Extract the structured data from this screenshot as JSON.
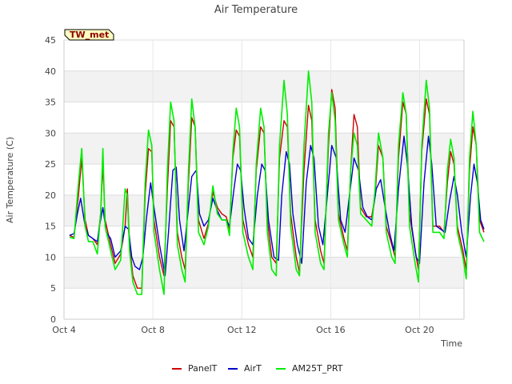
{
  "chart_data": {
    "type": "line",
    "title": "Air Temperature",
    "xlabel": "Time",
    "ylabel": "Air Temperature (C)",
    "station_label": "TW_met",
    "x_unit": "days since Oct 4",
    "xlim": [
      0,
      18
    ],
    "ylim": [
      0,
      45
    ],
    "y_ticks": [
      0,
      5,
      10,
      15,
      20,
      25,
      30,
      35,
      40,
      45
    ],
    "x_ticks": [
      {
        "value": 0,
        "label": "Oct 4"
      },
      {
        "value": 4,
        "label": "Oct 8"
      },
      {
        "value": 8,
        "label": "Oct 12"
      },
      {
        "value": 12,
        "label": "Oct 16"
      },
      {
        "value": 16,
        "label": "Oct 20"
      }
    ],
    "grid": true,
    "legend_position": "bottom",
    "series": [
      {
        "name": "PanelT",
        "color": "#cc0000",
        "points": [
          [
            0.25,
            13.5
          ],
          [
            0.45,
            13.2
          ],
          [
            0.65,
            20
          ],
          [
            0.8,
            26
          ],
          [
            0.95,
            16
          ],
          [
            1.1,
            13.5
          ],
          [
            1.3,
            13
          ],
          [
            1.5,
            12
          ],
          [
            1.65,
            17
          ],
          [
            1.75,
            25
          ],
          [
            1.85,
            16
          ],
          [
            2.1,
            12
          ],
          [
            2.3,
            9
          ],
          [
            2.55,
            10.5
          ],
          [
            2.75,
            15
          ],
          [
            2.85,
            21
          ],
          [
            2.95,
            12
          ],
          [
            3.1,
            7
          ],
          [
            3.3,
            5
          ],
          [
            3.5,
            5
          ],
          [
            3.65,
            20
          ],
          [
            3.8,
            27.5
          ],
          [
            3.95,
            27
          ],
          [
            4.05,
            16
          ],
          [
            4.3,
            10
          ],
          [
            4.5,
            7
          ],
          [
            4.65,
            21
          ],
          [
            4.8,
            32
          ],
          [
            4.95,
            31
          ],
          [
            5.1,
            14
          ],
          [
            5.3,
            10
          ],
          [
            5.45,
            8
          ],
          [
            5.6,
            22
          ],
          [
            5.75,
            32.5
          ],
          [
            5.9,
            31
          ],
          [
            6.05,
            16
          ],
          [
            6.3,
            13
          ],
          [
            6.5,
            15.5
          ],
          [
            6.7,
            20.5
          ],
          [
            6.9,
            18
          ],
          [
            7.1,
            17
          ],
          [
            7.3,
            16.5
          ],
          [
            7.45,
            14.5
          ],
          [
            7.6,
            26
          ],
          [
            7.75,
            30.5
          ],
          [
            7.9,
            29.5
          ],
          [
            8.05,
            16
          ],
          [
            8.3,
            12
          ],
          [
            8.5,
            10
          ],
          [
            8.65,
            24
          ],
          [
            8.85,
            31
          ],
          [
            9.0,
            30
          ],
          [
            9.15,
            16
          ],
          [
            9.35,
            10
          ],
          [
            9.55,
            9
          ],
          [
            9.7,
            26
          ],
          [
            9.9,
            32
          ],
          [
            10.05,
            31
          ],
          [
            10.2,
            17
          ],
          [
            10.45,
            10
          ],
          [
            10.6,
            7.5
          ],
          [
            10.8,
            24
          ],
          [
            11.0,
            34.5
          ],
          [
            11.15,
            32
          ],
          [
            11.3,
            16
          ],
          [
            11.55,
            11
          ],
          [
            11.7,
            9
          ],
          [
            11.9,
            28
          ],
          [
            12.05,
            37
          ],
          [
            12.2,
            34
          ],
          [
            12.35,
            17
          ],
          [
            12.6,
            13
          ],
          [
            12.75,
            11
          ],
          [
            12.9,
            24
          ],
          [
            13.05,
            33
          ],
          [
            13.2,
            31
          ],
          [
            13.35,
            18
          ],
          [
            13.6,
            16.5
          ],
          [
            13.85,
            16.5
          ],
          [
            14.0,
            20
          ],
          [
            14.15,
            28
          ],
          [
            14.35,
            26
          ],
          [
            14.5,
            15
          ],
          [
            14.75,
            12
          ],
          [
            14.9,
            10
          ],
          [
            15.05,
            26
          ],
          [
            15.25,
            35
          ],
          [
            15.4,
            33
          ],
          [
            15.55,
            17
          ],
          [
            15.8,
            11
          ],
          [
            15.95,
            8
          ],
          [
            16.1,
            27
          ],
          [
            16.3,
            35.5
          ],
          [
            16.45,
            33
          ],
          [
            16.6,
            15
          ],
          [
            16.9,
            15
          ],
          [
            17.1,
            14
          ],
          [
            17.25,
            22
          ],
          [
            17.4,
            27
          ],
          [
            17.55,
            25
          ],
          [
            17.7,
            15
          ],
          [
            17.95,
            11
          ],
          [
            18.1,
            8
          ],
          [
            18.25,
            24
          ],
          [
            18.4,
            31
          ],
          [
            18.55,
            28
          ],
          [
            18.7,
            16
          ],
          [
            18.9,
            14
          ]
        ]
      },
      {
        "name": "AirT",
        "color": "#0000cc",
        "points": [
          [
            0.25,
            13.5
          ],
          [
            0.45,
            13.8
          ],
          [
            0.6,
            17
          ],
          [
            0.75,
            19.5
          ],
          [
            0.95,
            15
          ],
          [
            1.1,
            13.5
          ],
          [
            1.3,
            13
          ],
          [
            1.5,
            12.5
          ],
          [
            1.6,
            15
          ],
          [
            1.75,
            18
          ],
          [
            1.9,
            14
          ],
          [
            2.1,
            13
          ],
          [
            2.3,
            10
          ],
          [
            2.55,
            11
          ],
          [
            2.75,
            15
          ],
          [
            2.9,
            14.5
          ],
          [
            3.05,
            10
          ],
          [
            3.2,
            8.5
          ],
          [
            3.4,
            8
          ],
          [
            3.55,
            10
          ],
          [
            3.7,
            16
          ],
          [
            3.9,
            22
          ],
          [
            4.05,
            18
          ],
          [
            4.3,
            12
          ],
          [
            4.55,
            7
          ],
          [
            4.7,
            14
          ],
          [
            4.9,
            24
          ],
          [
            5.05,
            24.5
          ],
          [
            5.2,
            16
          ],
          [
            5.4,
            11
          ],
          [
            5.6,
            18
          ],
          [
            5.75,
            23
          ],
          [
            5.95,
            24
          ],
          [
            6.1,
            17
          ],
          [
            6.3,
            15
          ],
          [
            6.5,
            16
          ],
          [
            6.7,
            19.5
          ],
          [
            6.9,
            17.5
          ],
          [
            7.1,
            16
          ],
          [
            7.3,
            16
          ],
          [
            7.45,
            15
          ],
          [
            7.65,
            21
          ],
          [
            7.8,
            25
          ],
          [
            7.95,
            24
          ],
          [
            8.1,
            18
          ],
          [
            8.3,
            13
          ],
          [
            8.5,
            12
          ],
          [
            8.7,
            20
          ],
          [
            8.9,
            25
          ],
          [
            9.05,
            24
          ],
          [
            9.2,
            16
          ],
          [
            9.45,
            10
          ],
          [
            9.65,
            9.5
          ],
          [
            9.8,
            20
          ],
          [
            10.0,
            27
          ],
          [
            10.15,
            25
          ],
          [
            10.3,
            17
          ],
          [
            10.5,
            12
          ],
          [
            10.7,
            9
          ],
          [
            10.9,
            22
          ],
          [
            11.1,
            28
          ],
          [
            11.25,
            26
          ],
          [
            11.45,
            15
          ],
          [
            11.65,
            12
          ],
          [
            11.85,
            20
          ],
          [
            12.05,
            28
          ],
          [
            12.25,
            26
          ],
          [
            12.45,
            16
          ],
          [
            12.65,
            14
          ],
          [
            12.85,
            20
          ],
          [
            13.05,
            26
          ],
          [
            13.25,
            24
          ],
          [
            13.45,
            18
          ],
          [
            13.65,
            16.5
          ],
          [
            13.85,
            16
          ],
          [
            14.05,
            21
          ],
          [
            14.25,
            22.5
          ],
          [
            14.45,
            18
          ],
          [
            14.65,
            14
          ],
          [
            14.85,
            11
          ],
          [
            15.05,
            21
          ],
          [
            15.3,
            29.5
          ],
          [
            15.45,
            25
          ],
          [
            15.65,
            15
          ],
          [
            15.85,
            10
          ],
          [
            16.0,
            9
          ],
          [
            16.2,
            22
          ],
          [
            16.4,
            29.5
          ],
          [
            16.55,
            25
          ],
          [
            16.75,
            15
          ],
          [
            16.95,
            14.5
          ],
          [
            17.15,
            14
          ],
          [
            17.35,
            19
          ],
          [
            17.55,
            23
          ],
          [
            17.7,
            20
          ],
          [
            17.9,
            14
          ],
          [
            18.1,
            10
          ],
          [
            18.3,
            20
          ],
          [
            18.45,
            25
          ],
          [
            18.6,
            22
          ],
          [
            18.75,
            16
          ],
          [
            18.9,
            14.5
          ]
        ]
      },
      {
        "name": "AM25T_PRT",
        "color": "#00ee00",
        "points": [
          [
            0.25,
            13.2
          ],
          [
            0.45,
            13
          ],
          [
            0.65,
            22
          ],
          [
            0.8,
            27.5
          ],
          [
            0.95,
            15
          ],
          [
            1.1,
            12.5
          ],
          [
            1.3,
            12.5
          ],
          [
            1.5,
            10.5
          ],
          [
            1.65,
            17
          ],
          [
            1.75,
            27.5
          ],
          [
            1.85,
            15
          ],
          [
            2.1,
            11
          ],
          [
            2.3,
            8
          ],
          [
            2.55,
            9.5
          ],
          [
            2.75,
            21
          ],
          [
            2.85,
            20
          ],
          [
            2.95,
            11
          ],
          [
            3.1,
            6
          ],
          [
            3.3,
            4
          ],
          [
            3.5,
            4
          ],
          [
            3.65,
            22
          ],
          [
            3.8,
            30.5
          ],
          [
            3.95,
            28
          ],
          [
            4.05,
            14
          ],
          [
            4.3,
            8
          ],
          [
            4.5,
            4
          ],
          [
            4.65,
            24
          ],
          [
            4.8,
            35
          ],
          [
            4.95,
            32
          ],
          [
            5.1,
            12
          ],
          [
            5.3,
            8
          ],
          [
            5.45,
            6
          ],
          [
            5.6,
            24
          ],
          [
            5.75,
            35.5
          ],
          [
            5.9,
            31
          ],
          [
            6.05,
            14
          ],
          [
            6.3,
            12
          ],
          [
            6.5,
            15
          ],
          [
            6.7,
            21.5
          ],
          [
            6.9,
            17
          ],
          [
            7.1,
            16
          ],
          [
            7.3,
            16
          ],
          [
            7.45,
            13.5
          ],
          [
            7.6,
            27
          ],
          [
            7.75,
            34
          ],
          [
            7.9,
            31
          ],
          [
            8.05,
            14
          ],
          [
            8.3,
            10
          ],
          [
            8.5,
            8
          ],
          [
            8.65,
            25
          ],
          [
            8.85,
            34
          ],
          [
            9.0,
            31
          ],
          [
            9.15,
            14
          ],
          [
            9.35,
            8
          ],
          [
            9.55,
            7
          ],
          [
            9.7,
            28
          ],
          [
            9.9,
            38.5
          ],
          [
            10.05,
            33
          ],
          [
            10.2,
            15
          ],
          [
            10.45,
            8
          ],
          [
            10.6,
            7
          ],
          [
            10.8,
            28
          ],
          [
            11.0,
            40
          ],
          [
            11.15,
            35
          ],
          [
            11.3,
            14
          ],
          [
            11.55,
            9
          ],
          [
            11.7,
            8
          ],
          [
            11.9,
            30
          ],
          [
            12.05,
            36.5
          ],
          [
            12.2,
            32
          ],
          [
            12.35,
            16
          ],
          [
            12.6,
            12
          ],
          [
            12.75,
            10
          ],
          [
            12.9,
            24
          ],
          [
            13.05,
            30
          ],
          [
            13.2,
            28
          ],
          [
            13.35,
            17
          ],
          [
            13.6,
            16
          ],
          [
            13.85,
            15
          ],
          [
            14.0,
            21
          ],
          [
            14.15,
            30
          ],
          [
            14.35,
            26
          ],
          [
            14.5,
            14
          ],
          [
            14.75,
            10
          ],
          [
            14.9,
            9
          ],
          [
            15.05,
            28
          ],
          [
            15.25,
            36.5
          ],
          [
            15.4,
            33
          ],
          [
            15.55,
            15
          ],
          [
            15.8,
            9
          ],
          [
            15.95,
            6
          ],
          [
            16.1,
            28
          ],
          [
            16.3,
            38.5
          ],
          [
            16.45,
            34
          ],
          [
            16.6,
            14
          ],
          [
            16.9,
            14
          ],
          [
            17.1,
            13
          ],
          [
            17.25,
            24
          ],
          [
            17.4,
            29
          ],
          [
            17.55,
            26
          ],
          [
            17.7,
            14
          ],
          [
            17.95,
            10
          ],
          [
            18.1,
            6.5
          ],
          [
            18.25,
            26
          ],
          [
            18.4,
            33.5
          ],
          [
            18.55,
            28
          ],
          [
            18.7,
            14
          ],
          [
            18.9,
            12.5
          ]
        ]
      }
    ]
  }
}
